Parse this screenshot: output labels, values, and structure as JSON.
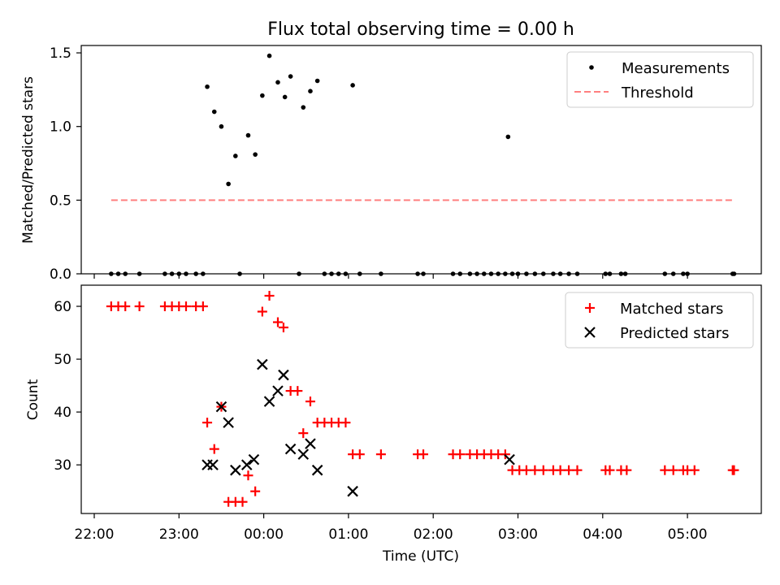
{
  "title": "Flux total observing time = 0.00 h",
  "x_ticks": [
    "22:00",
    "23:00",
    "00:00",
    "01:00",
    "02:00",
    "03:00",
    "04:00",
    "05:00"
  ],
  "chart_data": [
    {
      "type": "scatter",
      "ylabel": "Matched/Predicted stars",
      "ylim": [
        0,
        1.55
      ],
      "y_ticks": [
        "0.0",
        "0.5",
        "1.0",
        "1.5"
      ],
      "legend_position": "top-right",
      "legend": [
        "Measurements",
        "Threshold"
      ],
      "series": [
        {
          "name": "Measurements",
          "color": "#000000",
          "marker": "dot",
          "points": [
            {
              "x": "22:12",
              "y": 0
            },
            {
              "x": "22:17",
              "y": 0
            },
            {
              "x": "22:22",
              "y": 0
            },
            {
              "x": "22:32",
              "y": 0
            },
            {
              "x": "22:50",
              "y": 0
            },
            {
              "x": "22:55",
              "y": 0
            },
            {
              "x": "23:00",
              "y": 0
            },
            {
              "x": "23:05",
              "y": 0
            },
            {
              "x": "23:12",
              "y": 0
            },
            {
              "x": "23:17",
              "y": 0
            },
            {
              "x": "23:20",
              "y": 1.27
            },
            {
              "x": "23:25",
              "y": 1.1
            },
            {
              "x": "23:30",
              "y": 1.0
            },
            {
              "x": "23:35",
              "y": 0.61
            },
            {
              "x": "23:40",
              "y": 0.8
            },
            {
              "x": "23:43",
              "y": 0
            },
            {
              "x": "23:49",
              "y": 0.94
            },
            {
              "x": "23:54",
              "y": 0.81
            },
            {
              "x": "23:59",
              "y": 1.21
            },
            {
              "x": "00:04",
              "y": 1.48
            },
            {
              "x": "00:10",
              "y": 1.3
            },
            {
              "x": "00:15",
              "y": 1.2
            },
            {
              "x": "00:19",
              "y": 1.34
            },
            {
              "x": "00:25",
              "y": 0
            },
            {
              "x": "00:28",
              "y": 1.13
            },
            {
              "x": "00:33",
              "y": 1.24
            },
            {
              "x": "00:38",
              "y": 1.31
            },
            {
              "x": "00:43",
              "y": 0
            },
            {
              "x": "00:48",
              "y": 0
            },
            {
              "x": "00:53",
              "y": 0
            },
            {
              "x": "00:58",
              "y": 0
            },
            {
              "x": "01:03",
              "y": 1.28
            },
            {
              "x": "01:08",
              "y": 0
            },
            {
              "x": "01:23",
              "y": 0
            },
            {
              "x": "01:49",
              "y": 0
            },
            {
              "x": "01:53",
              "y": 0
            },
            {
              "x": "02:14",
              "y": 0
            },
            {
              "x": "02:19",
              "y": 0
            },
            {
              "x": "02:26",
              "y": 0
            },
            {
              "x": "02:31",
              "y": 0
            },
            {
              "x": "02:36",
              "y": 0
            },
            {
              "x": "02:41",
              "y": 0
            },
            {
              "x": "02:46",
              "y": 0
            },
            {
              "x": "02:51",
              "y": 0
            },
            {
              "x": "02:56",
              "y": 0
            },
            {
              "x": "02:53",
              "y": 0.93
            },
            {
              "x": "03:00",
              "y": 0
            },
            {
              "x": "03:06",
              "y": 0
            },
            {
              "x": "03:12",
              "y": 0
            },
            {
              "x": "03:18",
              "y": 0
            },
            {
              "x": "03:25",
              "y": 0
            },
            {
              "x": "03:30",
              "y": 0
            },
            {
              "x": "03:36",
              "y": 0
            },
            {
              "x": "03:42",
              "y": 0
            },
            {
              "x": "04:02",
              "y": 0
            },
            {
              "x": "04:05",
              "y": 0
            },
            {
              "x": "04:13",
              "y": 0
            },
            {
              "x": "04:16",
              "y": 0
            },
            {
              "x": "04:44",
              "y": 0
            },
            {
              "x": "04:50",
              "y": 0
            },
            {
              "x": "04:57",
              "y": 0
            },
            {
              "x": "05:00",
              "y": 0
            },
            {
              "x": "05:32",
              "y": 0
            },
            {
              "x": "05:33",
              "y": 0
            }
          ]
        },
        {
          "name": "Threshold",
          "color": "#ff7f7f",
          "style": "dashed",
          "points": [
            {
              "x": "22:12",
              "y": 0.5
            },
            {
              "x": "05:32",
              "y": 0.5
            }
          ]
        }
      ]
    },
    {
      "type": "scatter",
      "xlabel": "Time (UTC)",
      "ylabel": "Count",
      "ylim": [
        20.8,
        64
      ],
      "y_ticks": [
        "30",
        "40",
        "50",
        "60"
      ],
      "legend_position": "top-right",
      "legend": [
        "Matched stars",
        "Predicted stars"
      ],
      "series": [
        {
          "name": "Matched stars",
          "color": "#ff0000",
          "marker": "plus",
          "points": [
            {
              "x": "22:12",
              "y": 60
            },
            {
              "x": "22:17",
              "y": 60
            },
            {
              "x": "22:22",
              "y": 60
            },
            {
              "x": "22:32",
              "y": 60
            },
            {
              "x": "22:50",
              "y": 60
            },
            {
              "x": "22:55",
              "y": 60
            },
            {
              "x": "23:00",
              "y": 60
            },
            {
              "x": "23:05",
              "y": 60
            },
            {
              "x": "23:12",
              "y": 60
            },
            {
              "x": "23:17",
              "y": 60
            },
            {
              "x": "23:20",
              "y": 38
            },
            {
              "x": "23:25",
              "y": 33
            },
            {
              "x": "23:30",
              "y": 41
            },
            {
              "x": "23:35",
              "y": 23
            },
            {
              "x": "23:40",
              "y": 23
            },
            {
              "x": "23:45",
              "y": 23
            },
            {
              "x": "23:49",
              "y": 28
            },
            {
              "x": "23:54",
              "y": 25
            },
            {
              "x": "23:59",
              "y": 59
            },
            {
              "x": "00:04",
              "y": 62
            },
            {
              "x": "00:10",
              "y": 57
            },
            {
              "x": "00:14",
              "y": 56
            },
            {
              "x": "00:19",
              "y": 44
            },
            {
              "x": "00:24",
              "y": 44
            },
            {
              "x": "00:28",
              "y": 36
            },
            {
              "x": "00:33",
              "y": 42
            },
            {
              "x": "00:38",
              "y": 38
            },
            {
              "x": "00:43",
              "y": 38
            },
            {
              "x": "00:48",
              "y": 38
            },
            {
              "x": "00:53",
              "y": 38
            },
            {
              "x": "00:58",
              "y": 38
            },
            {
              "x": "01:03",
              "y": 32
            },
            {
              "x": "01:08",
              "y": 32
            },
            {
              "x": "01:23",
              "y": 32
            },
            {
              "x": "01:49",
              "y": 32
            },
            {
              "x": "01:53",
              "y": 32
            },
            {
              "x": "02:14",
              "y": 32
            },
            {
              "x": "02:19",
              "y": 32
            },
            {
              "x": "02:26",
              "y": 32
            },
            {
              "x": "02:31",
              "y": 32
            },
            {
              "x": "02:36",
              "y": 32
            },
            {
              "x": "02:41",
              "y": 32
            },
            {
              "x": "02:46",
              "y": 32
            },
            {
              "x": "02:51",
              "y": 32
            },
            {
              "x": "02:56",
              "y": 29
            },
            {
              "x": "03:01",
              "y": 29
            },
            {
              "x": "03:06",
              "y": 29
            },
            {
              "x": "03:12",
              "y": 29
            },
            {
              "x": "03:18",
              "y": 29
            },
            {
              "x": "03:25",
              "y": 29
            },
            {
              "x": "03:30",
              "y": 29
            },
            {
              "x": "03:36",
              "y": 29
            },
            {
              "x": "03:42",
              "y": 29
            },
            {
              "x": "04:02",
              "y": 29
            },
            {
              "x": "04:05",
              "y": 29
            },
            {
              "x": "04:13",
              "y": 29
            },
            {
              "x": "04:17",
              "y": 29
            },
            {
              "x": "04:44",
              "y": 29
            },
            {
              "x": "04:50",
              "y": 29
            },
            {
              "x": "04:57",
              "y": 29
            },
            {
              "x": "05:00",
              "y": 29
            },
            {
              "x": "05:05",
              "y": 29
            },
            {
              "x": "05:32",
              "y": 29
            },
            {
              "x": "05:33",
              "y": 29
            }
          ]
        },
        {
          "name": "Predicted stars",
          "color": "#000000",
          "marker": "x",
          "points": [
            {
              "x": "23:20",
              "y": 30
            },
            {
              "x": "23:24",
              "y": 30
            },
            {
              "x": "23:30",
              "y": 41
            },
            {
              "x": "23:35",
              "y": 38
            },
            {
              "x": "23:40",
              "y": 29
            },
            {
              "x": "23:48",
              "y": 30
            },
            {
              "x": "23:53",
              "y": 31
            },
            {
              "x": "23:59",
              "y": 49
            },
            {
              "x": "00:04",
              "y": 42
            },
            {
              "x": "00:10",
              "y": 44
            },
            {
              "x": "00:14",
              "y": 47
            },
            {
              "x": "00:19",
              "y": 33
            },
            {
              "x": "00:28",
              "y": 32
            },
            {
              "x": "00:33",
              "y": 34
            },
            {
              "x": "00:38",
              "y": 29
            },
            {
              "x": "01:03",
              "y": 25
            },
            {
              "x": "02:54",
              "y": 31
            }
          ]
        }
      ]
    }
  ]
}
